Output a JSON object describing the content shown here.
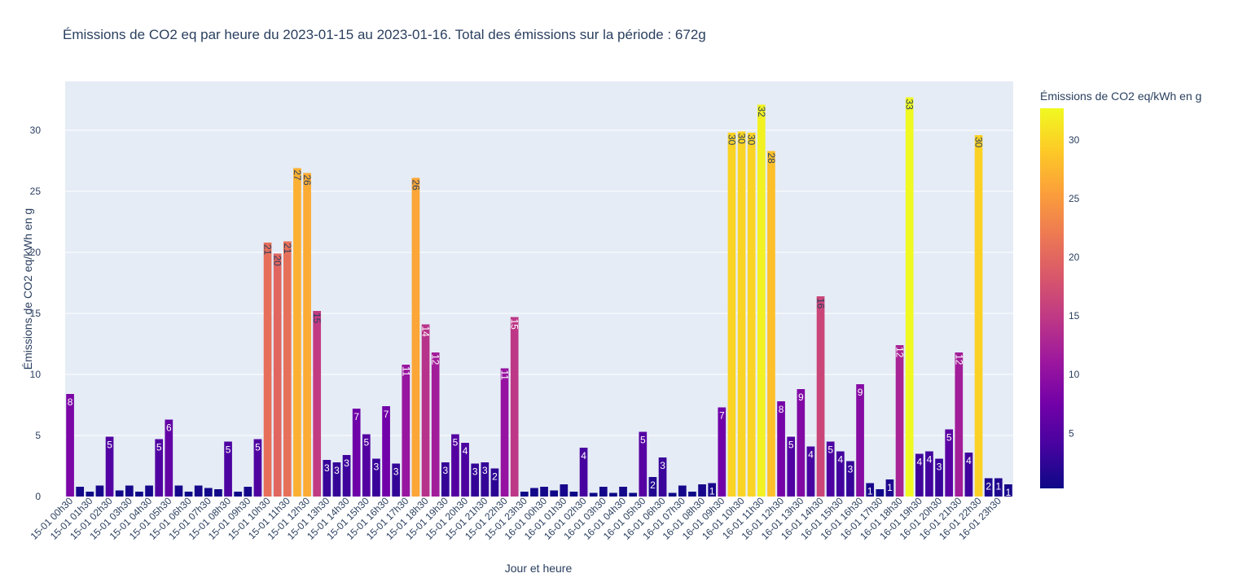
{
  "chart_data": {
    "type": "bar",
    "title": "Émissions de CO2 eq par heure du 2023-01-15 au 2023-01-16. Total des émissions sur la période : 672g",
    "xlabel": "Jour et heure",
    "ylabel": "Émissions de CO2 eq/kWh en g",
    "ylim": [
      0,
      34
    ],
    "yticks": [
      0,
      5,
      10,
      15,
      20,
      25,
      30
    ],
    "grid": true,
    "colorbar": {
      "title": "Émissions de CO2 eq/kWh en g",
      "range": [
        0.3,
        32.7
      ],
      "ticks": [
        5,
        10,
        15,
        20,
        25,
        30
      ],
      "colorscale": [
        "#0d0887",
        "#46039f",
        "#7201a8",
        "#9c179e",
        "#bd3786",
        "#d8576b",
        "#ed7953",
        "#fb9f3a",
        "#fdca26",
        "#f0f921"
      ]
    },
    "tick_labels": [
      "15-01 00h30",
      "15-01 01h30",
      "15-01 02h30",
      "15-01 03h30",
      "15-01 04h30",
      "15-01 05h30",
      "15-01 06h30",
      "15-01 07h30",
      "15-01 08h30",
      "15-01 09h30",
      "15-01 10h30",
      "15-01 11h30",
      "15-01 12h30",
      "15-01 13h30",
      "15-01 14h30",
      "15-01 15h30",
      "15-01 16h30",
      "15-01 17h30",
      "15-01 18h30",
      "15-01 19h30",
      "15-01 20h30",
      "15-01 21h30",
      "15-01 22h30",
      "15-01 23h30",
      "16-01 00h30",
      "16-01 01h30",
      "16-01 02h30",
      "16-01 03h30",
      "16-01 04h30",
      "16-01 05h30",
      "16-01 06h30",
      "16-01 07h30",
      "16-01 08h30",
      "16-01 09h30",
      "16-01 10h30",
      "16-01 11h30",
      "16-01 12h30",
      "16-01 13h30",
      "16-01 14h30",
      "16-01 15h30",
      "16-01 16h30",
      "16-01 17h30",
      "16-01 18h30",
      "16-01 19h30",
      "16-01 20h30",
      "16-01 21h30",
      "16-01 22h30",
      "16-01 23h30"
    ],
    "values": [
      8.4,
      0.8,
      0.4,
      0.9,
      4.9,
      0.5,
      0.9,
      0.4,
      0.9,
      4.7,
      6.3,
      0.9,
      0.4,
      0.9,
      0.7,
      0.6,
      4.5,
      0.4,
      0.8,
      4.7,
      20.8,
      19.9,
      20.9,
      26.9,
      26.5,
      15.2,
      3.0,
      2.8,
      3.4,
      7.2,
      5.1,
      3.1,
      7.4,
      2.7,
      10.8,
      26.1,
      14.1,
      11.8,
      2.8,
      5.1,
      4.4,
      2.7,
      2.8,
      2.3,
      10.5,
      14.7,
      0.4,
      0.7,
      0.8,
      0.5,
      1.0,
      0.4,
      4.0,
      0.3,
      0.8,
      0.3,
      0.8,
      0.3,
      5.3,
      1.6,
      3.2,
      0.3,
      0.9,
      0.4,
      1.0,
      1.1,
      7.3,
      29.8,
      29.9,
      29.8,
      32.1,
      28.3,
      7.8,
      4.9,
      8.8,
      4.1,
      16.4,
      4.5,
      3.7,
      2.9,
      9.2,
      1.1,
      0.6,
      1.4,
      12.4,
      32.7,
      3.5,
      3.7,
      3.1,
      5.5,
      11.8,
      3.6,
      29.6,
      1.5,
      1.5,
      1.0
    ],
    "data_labels": [
      "8",
      "",
      "",
      "",
      "5",
      "",
      "",
      "",
      "",
      "5",
      "6",
      "",
      "",
      "",
      "",
      "",
      "5",
      "",
      "",
      "5",
      "21",
      "20",
      "21",
      "27",
      "26",
      "15",
      "3",
      "3",
      "3",
      "7",
      "5",
      "3",
      "7",
      "3",
      "11",
      "26",
      "14",
      "12",
      "3",
      "5",
      "4",
      "3",
      "3",
      "2",
      "11",
      "15",
      "",
      "",
      "",
      "",
      "",
      "",
      "4",
      "",
      "",
      "",
      "",
      "",
      "5",
      "2",
      "3",
      "",
      "",
      "",
      "",
      "1",
      "7",
      "30",
      "30",
      "30",
      "32",
      "28",
      "8",
      "5",
      "9",
      "4",
      "16",
      "5",
      "4",
      "3",
      "9",
      "1",
      "",
      "1",
      "12",
      "33",
      "4",
      "4",
      "3",
      "5",
      "12",
      "4",
      "30",
      "2",
      "1",
      "1"
    ]
  }
}
